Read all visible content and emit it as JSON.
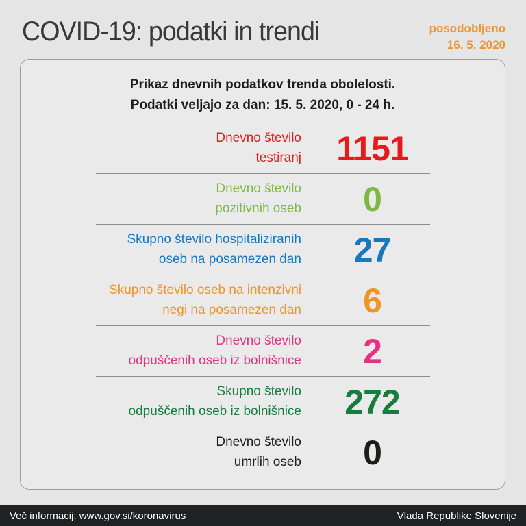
{
  "page": {
    "title": "COVID-19: podatki in trendi",
    "updated_label": "posodobljeno",
    "updated_date": "16. 5. 2020"
  },
  "card": {
    "header_line1": "Prikaz dnevnih podatkov trenda obolelosti.",
    "header_line2": "Podatki veljajo za dan: 15. 5. 2020, 0 - 24 h.",
    "rows": [
      {
        "label_line1": "Dnevno število",
        "label_line2": "testiranj",
        "value": "1151",
        "color": "#e8191d"
      },
      {
        "label_line1": "Dnevno število",
        "label_line2": "pozitivnih oseb",
        "value": "0",
        "color": "#7db843"
      },
      {
        "label_line1": "Skupno število hospitaliziranih",
        "label_line2": "oseb na posamezen dan",
        "value": "27",
        "color": "#1878bd"
      },
      {
        "label_line1": "Skupno število oseb na intenzivni",
        "label_line2": "negi na posamezen dan",
        "value": "6",
        "color": "#f09426"
      },
      {
        "label_line1": "Dnevno število",
        "label_line2": "odpuščenih oseb iz bolnišnice",
        "value": "2",
        "color": "#e63183"
      },
      {
        "label_line1": "Skupno število",
        "label_line2": "odpuščenih oseb iz bolnišnice",
        "value": "272",
        "color": "#177c3d"
      },
      {
        "label_line1": "Dnevno število",
        "label_line2": "umrlih oseb",
        "value": "0",
        "color": "#1d1d1b"
      }
    ]
  },
  "footer": {
    "info": "Več informacij: www.gov.si/koronavirus",
    "org": "Vlada Republike Slovenije"
  },
  "colors": {
    "accent_orange": "#f0932e",
    "page_background": "#e4e5e4",
    "card_background": "#e9eae9",
    "divider": "#8d8d8d",
    "footer_background": "#1f2122",
    "title_text": "#38383a"
  },
  "chart_data": {
    "type": "table",
    "title": "Prikaz dnevnih podatkov trenda obolelosti. Podatki veljajo za dan: 15. 5. 2020, 0 - 24 h.",
    "categories": [
      "Dnevno število testiranj",
      "Dnevno število pozitivnih oseb",
      "Skupno število hospitaliziranih oseb na posamezen dan",
      "Skupno število oseb na intenzivni negi na posamezen dan",
      "Dnevno število odpuščenih oseb iz bolnišnice",
      "Skupno število odpuščenih oseb iz bolnišnice",
      "Dnevno število umrlih oseb"
    ],
    "values": [
      1151,
      0,
      27,
      6,
      2,
      272,
      0
    ],
    "updated": "16. 5. 2020"
  }
}
